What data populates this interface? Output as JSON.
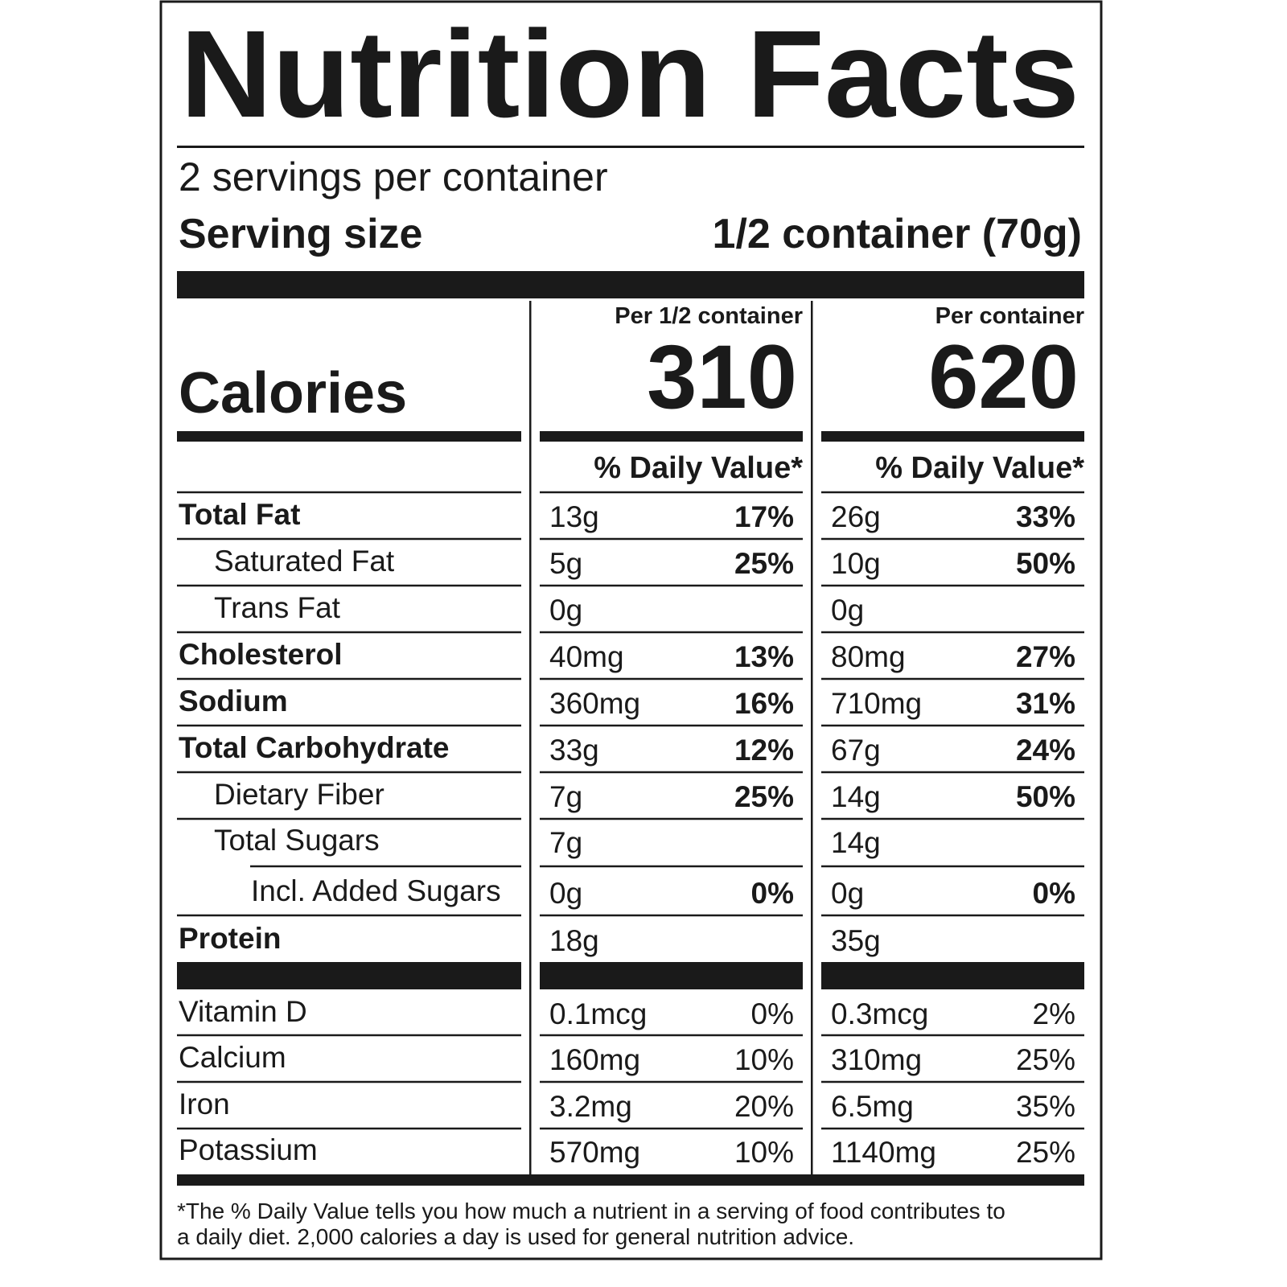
{
  "header": {
    "title": "Nutrition Facts",
    "servings": "2 servings per container",
    "serving_size_label": "Serving size",
    "serving_size_value": "1/2 container (70g)"
  },
  "calories_label": "Calories",
  "columns": [
    {
      "header": "Per 1/2 container",
      "calories": 310,
      "dv_header": "% Daily Value*"
    },
    {
      "header": "Per container",
      "calories": 620,
      "dv_header": "% Daily Value*"
    }
  ],
  "nutrients": [
    {
      "name": "Total Fat",
      "amounts": [
        "13g",
        "26g"
      ],
      "dv": [
        "17%",
        "33%"
      ]
    },
    {
      "name": "Saturated Fat",
      "amounts": [
        "5g",
        "10g"
      ],
      "dv": [
        "25%",
        "50%"
      ]
    },
    {
      "name": "Trans Fat",
      "amounts": [
        "0g",
        "0g"
      ],
      "dv": [
        null,
        null
      ]
    },
    {
      "name": "Cholesterol",
      "amounts": [
        "40mg",
        "80mg"
      ],
      "dv": [
        "13%",
        "27%"
      ]
    },
    {
      "name": "Sodium",
      "amounts": [
        "360mg",
        "710mg"
      ],
      "dv": [
        "16%",
        "31%"
      ]
    },
    {
      "name": "Total Carbohydrate",
      "amounts": [
        "33g",
        "67g"
      ],
      "dv": [
        "12%",
        "24%"
      ]
    },
    {
      "name": "Dietary Fiber",
      "amounts": [
        "7g",
        "14g"
      ],
      "dv": [
        "25%",
        "50%"
      ]
    },
    {
      "name": "Total Sugars",
      "amounts": [
        "7g",
        "14g"
      ],
      "dv": [
        null,
        null
      ]
    },
    {
      "name": "Incl. Added Sugars",
      "amounts": [
        "0g",
        "0g"
      ],
      "dv": [
        "0%",
        "0%"
      ]
    },
    {
      "name": "Protein",
      "amounts": [
        "18g",
        "35g"
      ],
      "dv": [
        null,
        null
      ]
    }
  ],
  "vitamins": [
    {
      "name": "Vitamin D",
      "amounts": [
        "0.1mcg",
        "0.3mcg"
      ],
      "dv": [
        "0%",
        "2%"
      ]
    },
    {
      "name": "Calcium",
      "amounts": [
        "160mg",
        "310mg"
      ],
      "dv": [
        "10%",
        "25%"
      ]
    },
    {
      "name": "Iron",
      "amounts": [
        "3.2mg",
        "6.5mg"
      ],
      "dv": [
        "20%",
        "35%"
      ]
    },
    {
      "name": "Potassium",
      "amounts": [
        "570mg",
        "1140mg"
      ],
      "dv": [
        "10%",
        "25%"
      ]
    }
  ],
  "footnote": [
    "*The % Daily Value tells you how much a nutrient in a serving of food contributes to",
    "a daily diet. 2,000 calories a day is used for general nutrition advice."
  ]
}
